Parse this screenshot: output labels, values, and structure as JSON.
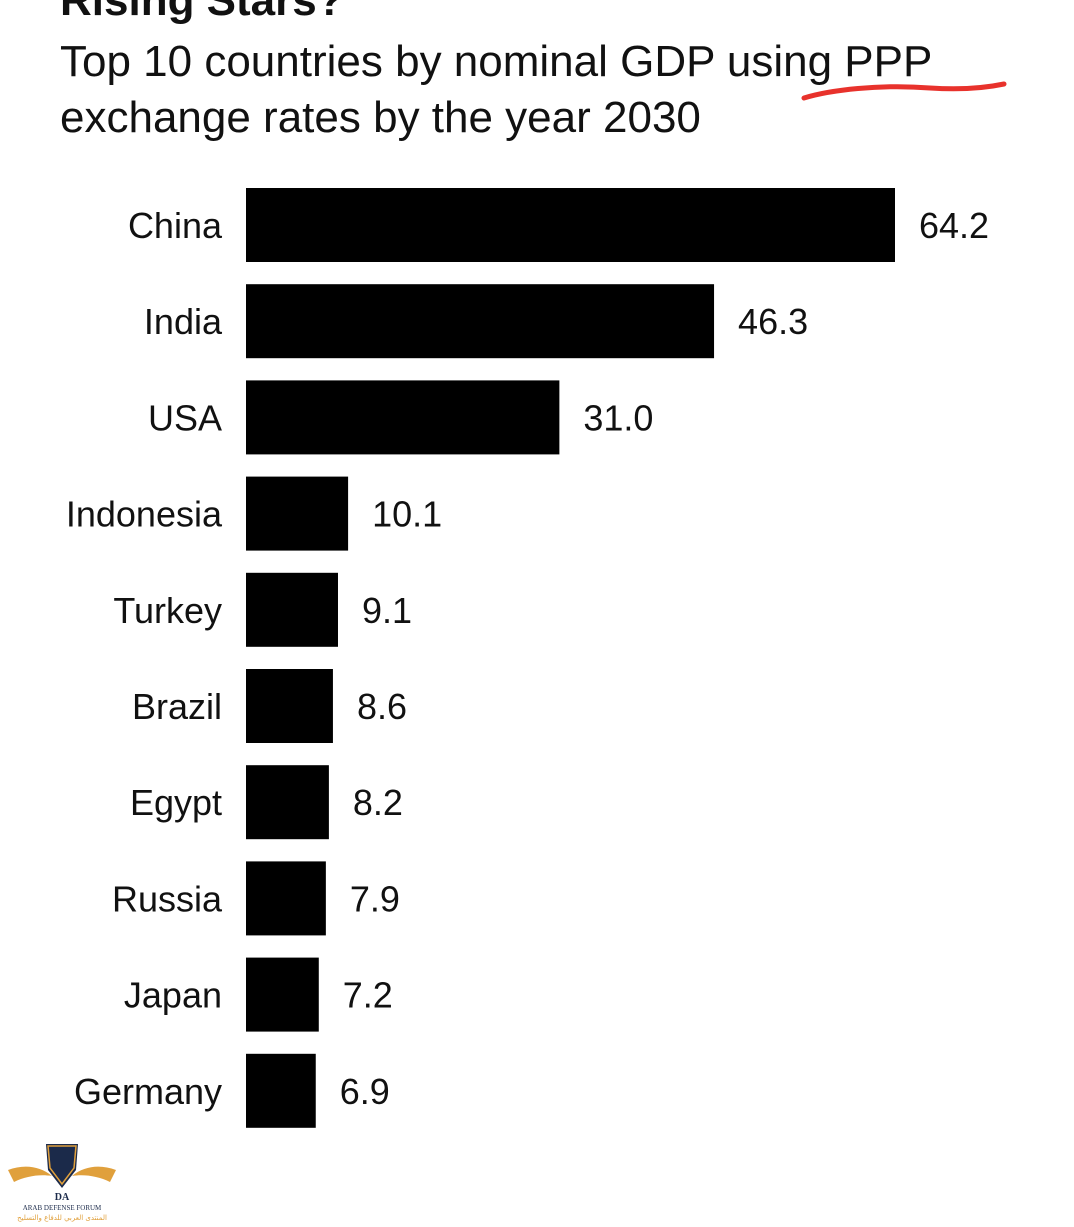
{
  "title": "Rising Stars?",
  "subtitle": "Top 10 countries by nominal GDP using PPP exchange rates by the year 2030",
  "logo": {
    "name": "ARAB DEFENSE FORUM",
    "initials": "DA",
    "arabic": "المنتدى العربي للدفاع والتسليح"
  },
  "colors": {
    "bar": "#000000",
    "text": "#111111",
    "annotation": "#e8322c"
  },
  "chart_data": {
    "type": "bar",
    "orientation": "horizontal",
    "categories": [
      "China",
      "India",
      "USA",
      "Indonesia",
      "Turkey",
      "Brazil",
      "Egypt",
      "Russia",
      "Japan",
      "Germany"
    ],
    "values": [
      64.2,
      46.3,
      31.0,
      10.1,
      9.1,
      8.6,
      8.2,
      7.9,
      7.2,
      6.9
    ],
    "value_labels": [
      "64.2",
      "46.3",
      "31.0",
      "10.1",
      "9.1",
      "8.6",
      "8.2",
      "7.9",
      "7.2",
      "6.9"
    ],
    "title": "Rising Stars?",
    "subtitle": "Top 10 countries by nominal GDP using PPP exchange rates by the year 2030",
    "xlabel": "",
    "ylabel": "",
    "xlim": [
      0,
      64.2
    ],
    "grid": false,
    "legend": "none"
  }
}
